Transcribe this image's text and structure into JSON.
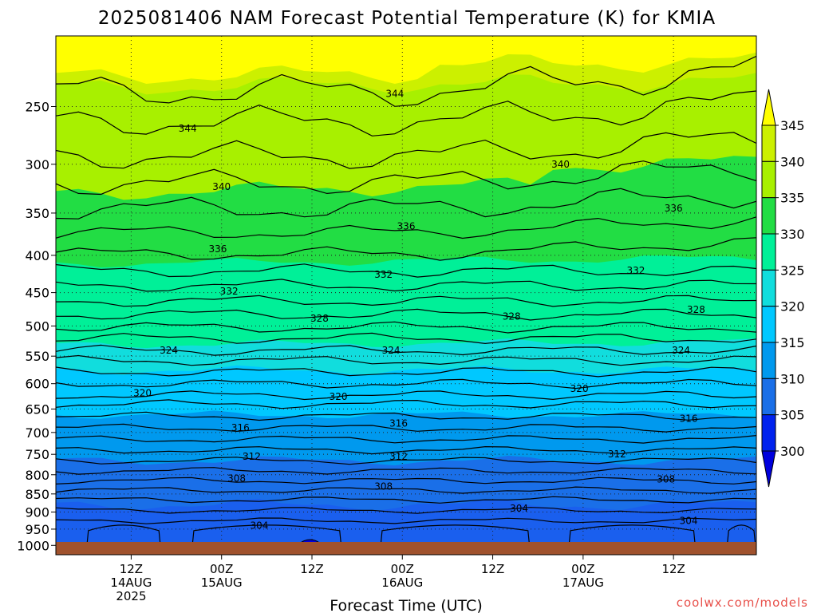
{
  "title": "2025081406 NAM Forecast Potential Temperature (K) for KMIA",
  "credit": "coolwx.com/models",
  "chart_data": {
    "type": "heatmap",
    "title": "2025081406 NAM Forecast Potential Temperature (K) for KMIA",
    "xlabel": "Forecast Time (UTC)",
    "ylabel": "",
    "units": "K",
    "y_scale": "log (pressure, hPa, inverted)",
    "y_range": [
      1030,
      200
    ],
    "y_ticks": [
      250,
      300,
      350,
      400,
      450,
      500,
      550,
      600,
      650,
      700,
      750,
      800,
      850,
      900,
      950,
      1000
    ],
    "x_ticks": [
      {
        "line1": "12Z",
        "line2": "14AUG",
        "line3": "2025"
      },
      {
        "line1": "00Z",
        "line2": "15AUG",
        "line3": ""
      },
      {
        "line1": "12Z",
        "line2": "",
        "line3": ""
      },
      {
        "line1": "00Z",
        "line2": "16AUG",
        "line3": ""
      },
      {
        "line1": "12Z",
        "line2": "",
        "line3": ""
      },
      {
        "line1": "00Z",
        "line2": "17AUG",
        "line3": ""
      },
      {
        "line1": "12Z",
        "line2": "",
        "line3": ""
      }
    ],
    "grid": true,
    "legend": "colorbar right",
    "colorbar": {
      "levels": [
        "345",
        "340",
        "335",
        "330",
        "325",
        "320",
        "315",
        "310",
        "305",
        "300"
      ],
      "colors": [
        "#ffff00",
        "#ccf000",
        "#a8f000",
        "#22dd44",
        "#00f098",
        "#11dddd",
        "#00c8ff",
        "#0099ee",
        "#1a6fe8",
        "#0022ee",
        "#0000dd"
      ]
    },
    "contour_labels": [
      {
        "value": "344",
        "hour": 7.5,
        "p": 268
      },
      {
        "value": "344",
        "hour": 35,
        "p": 240
      },
      {
        "value": "340",
        "hour": 12,
        "p": 322
      },
      {
        "value": "340",
        "hour": 57,
        "p": 300
      },
      {
        "value": "336",
        "hour": 11.5,
        "p": 392
      },
      {
        "value": "336",
        "hour": 36.5,
        "p": 365
      },
      {
        "value": "336",
        "hour": 72,
        "p": 345
      },
      {
        "value": "332",
        "hour": 13,
        "p": 448
      },
      {
        "value": "332",
        "hour": 33.5,
        "p": 425
      },
      {
        "value": "332",
        "hour": 67,
        "p": 420
      },
      {
        "value": "328",
        "hour": 25,
        "p": 488
      },
      {
        "value": "328",
        "hour": 50.5,
        "p": 485
      },
      {
        "value": "328",
        "hour": 75,
        "p": 475
      },
      {
        "value": "324",
        "hour": 5,
        "p": 540
      },
      {
        "value": "324",
        "hour": 34.5,
        "p": 540
      },
      {
        "value": "324",
        "hour": 73,
        "p": 540
      },
      {
        "value": "320",
        "hour": 1.5,
        "p": 618
      },
      {
        "value": "320",
        "hour": 27.5,
        "p": 625
      },
      {
        "value": "320",
        "hour": 59.5,
        "p": 610
      },
      {
        "value": "316",
        "hour": 14.5,
        "p": 690
      },
      {
        "value": "316",
        "hour": 35.5,
        "p": 680
      },
      {
        "value": "316",
        "hour": 74,
        "p": 670
      },
      {
        "value": "312",
        "hour": 16,
        "p": 755
      },
      {
        "value": "312",
        "hour": 35.5,
        "p": 755
      },
      {
        "value": "312",
        "hour": 64.5,
        "p": 750
      },
      {
        "value": "308",
        "hour": 14,
        "p": 810
      },
      {
        "value": "308",
        "hour": 33.5,
        "p": 830
      },
      {
        "value": "308",
        "hour": 71,
        "p": 812
      },
      {
        "value": "304",
        "hour": 17,
        "p": 940
      },
      {
        "value": "304",
        "hour": 51.5,
        "p": 890
      },
      {
        "value": "304",
        "hour": 74,
        "p": 925
      }
    ]
  }
}
